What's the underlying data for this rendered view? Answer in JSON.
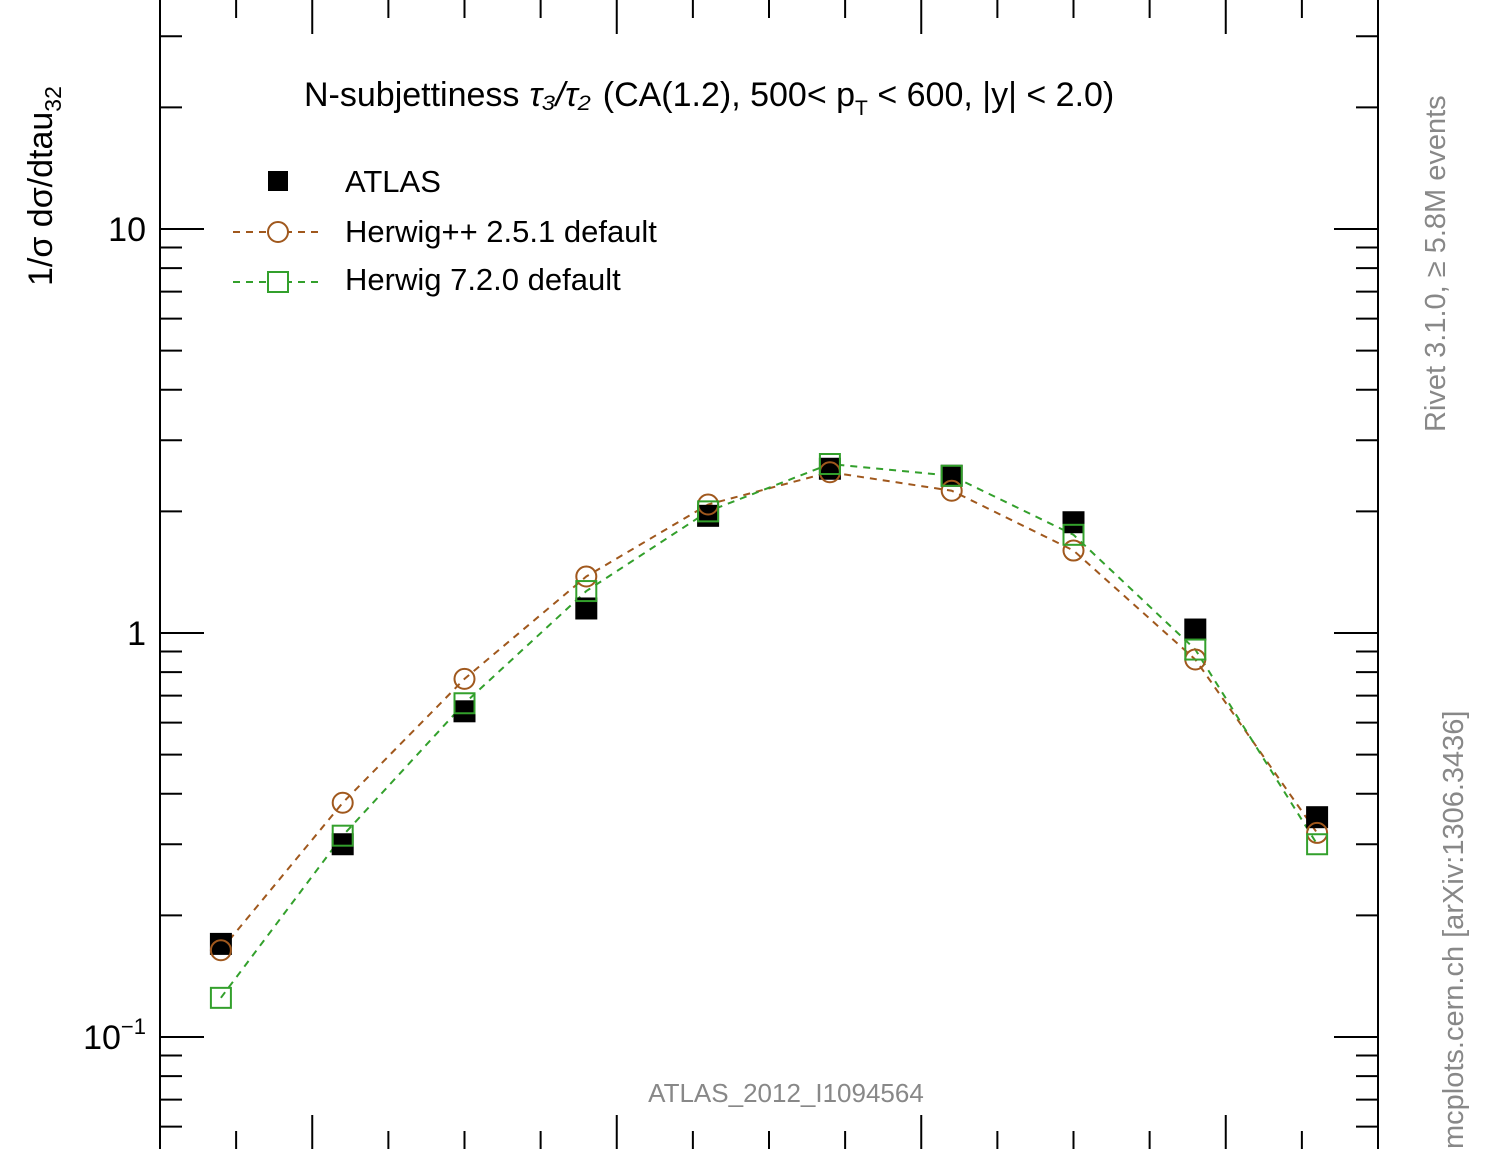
{
  "chart_data": {
    "type": "scatter",
    "title": "N-subjettiness",
    "title_ratio": "τ₃/τ₂",
    "title_selection_a": "(CA(1.2), 500< p",
    "title_selection_sub": "T",
    "title_selection_b": " < 600, |y| < 2.0)",
    "ylabel": "1/σ dσ/dtau",
    "ylabel_sub": "32",
    "y_scale": "log",
    "ylim": [
      0.06,
      30
    ],
    "xlim": [
      0.0,
      1.0
    ],
    "grid": false,
    "legend_position": "top-left",
    "y_ticks": [
      {
        "value": 10,
        "label": "10"
      },
      {
        "value": 1,
        "label": "1"
      },
      {
        "value": 0.1,
        "label": "10",
        "sup": "−1"
      }
    ],
    "x": [
      0.05,
      0.15,
      0.25,
      0.35,
      0.45,
      0.55,
      0.65,
      0.75,
      0.85,
      0.95
    ],
    "series": [
      {
        "name": "ATLAS",
        "marker": "filled-square",
        "color": "#000000",
        "values": [
          0.17,
          0.3,
          0.64,
          1.15,
          1.95,
          2.55,
          2.45,
          1.88,
          1.02,
          0.35
        ]
      },
      {
        "name": "Herwig++ 2.5.1 default",
        "marker": "open-circle",
        "line": "dashed",
        "color": "#a0581d",
        "values": [
          0.164,
          0.38,
          0.77,
          1.38,
          2.08,
          2.5,
          2.25,
          1.6,
          0.86,
          0.32
        ]
      },
      {
        "name": "Herwig 7.2.0 default",
        "marker": "open-square",
        "line": "dashed",
        "color": "#33a02c",
        "values": [
          0.125,
          0.315,
          0.67,
          1.27,
          2.0,
          2.62,
          2.45,
          1.75,
          0.91,
          0.3
        ]
      }
    ],
    "analysis_label": "ATLAS_2012_I1094564",
    "side_label_top": "Rivet 3.1.0, ≥ 5.8M events",
    "side_label_bottom": "mcplots.cern.ch [arXiv:1306.3436]"
  },
  "colors": {
    "axis": "#000000",
    "watermark": "#888888",
    "herwigpp": "#a0581d",
    "herwig7": "#33a02c"
  }
}
